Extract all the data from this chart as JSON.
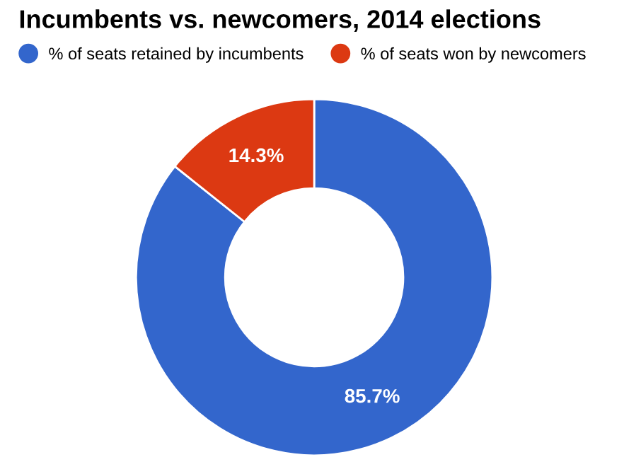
{
  "chart_data": {
    "type": "donut",
    "title": "Incumbents vs. newcomers, 2014 elections",
    "categories": [
      "% of seats retained by incumbents",
      "% of seats won by newcomers"
    ],
    "values": [
      85.7,
      14.3
    ],
    "colors": [
      "#3366cc",
      "#dc3912"
    ],
    "value_labels": [
      "85.7%",
      "14.3%"
    ],
    "legend": "top"
  }
}
